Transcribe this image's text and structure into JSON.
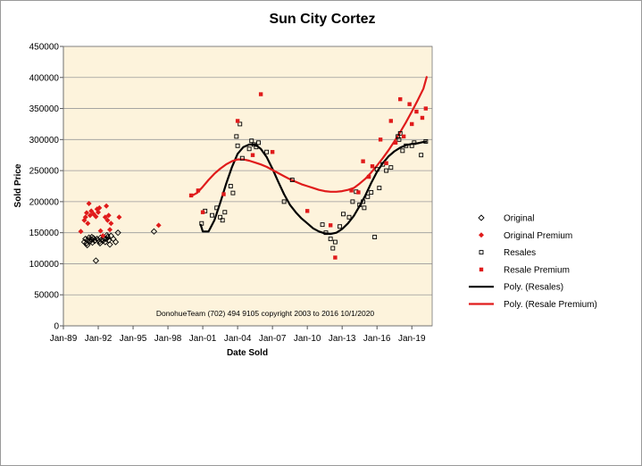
{
  "chart_data": {
    "type": "scatter",
    "title": "Sun City Cortez",
    "xlabel": "Date Sold",
    "ylabel": "Sold Price",
    "xlim": [
      1989.0,
      2020.75
    ],
    "ylim": [
      0,
      450000
    ],
    "y_ticks": [
      "0",
      "50000",
      "100000",
      "150000",
      "200000",
      "250000",
      "300000",
      "350000",
      "400000",
      "450000"
    ],
    "y_tick_values": [
      0,
      50000,
      100000,
      150000,
      200000,
      250000,
      300000,
      350000,
      400000,
      450000
    ],
    "x_ticks": [
      "Jan-89",
      "Jan-92",
      "Jan-95",
      "Jan-98",
      "Jan-01",
      "Jan-04",
      "Jan-07",
      "Jan-10",
      "Jan-13",
      "Jan-16",
      "Jan-19"
    ],
    "x_tick_values": [
      1989,
      1992,
      1995,
      1998,
      2001,
      2004,
      2007,
      2010,
      2013,
      2016,
      2019
    ],
    "annotation": "DonohueTeam   (702) 494 9105 copyright  2003 to 2016  10/1/2020",
    "colors": {
      "plot_bg": "#fdf3dc",
      "black": "#000000",
      "red": "#e01b1b",
      "grid": "#9a9a9a"
    },
    "series": [
      {
        "name": "Original",
        "marker": "diamond-open",
        "color": "#000000",
        "points": [
          [
            1990.8,
            135000
          ],
          [
            1990.9,
            140000
          ],
          [
            1991.0,
            133000
          ],
          [
            1991.1,
            138000
          ],
          [
            1991.2,
            142000
          ],
          [
            1991.3,
            136000
          ],
          [
            1991.4,
            139000
          ],
          [
            1991.5,
            134000
          ],
          [
            1991.6,
            141000
          ],
          [
            1991.7,
            137000
          ],
          [
            1991.8,
            105000
          ],
          [
            1991.9,
            140000
          ],
          [
            1992.0,
            138000
          ],
          [
            1992.1,
            136000
          ],
          [
            1992.2,
            142000
          ],
          [
            1992.3,
            139000
          ],
          [
            1992.4,
            137000
          ],
          [
            1992.5,
            141000
          ],
          [
            1992.6,
            135000
          ],
          [
            1992.7,
            140000
          ],
          [
            1992.8,
            143000
          ],
          [
            1992.9,
            138000
          ],
          [
            1993.0,
            131000
          ],
          [
            1993.1,
            145000
          ],
          [
            1993.3,
            140000
          ],
          [
            1993.5,
            135000
          ],
          [
            1993.7,
            150000
          ],
          [
            1991.05,
            130000
          ],
          [
            1991.45,
            143000
          ],
          [
            1992.15,
            133000
          ],
          [
            1992.75,
            146000
          ],
          [
            1996.8,
            152000
          ]
        ]
      },
      {
        "name": "Original Premium",
        "marker": "diamond-filled",
        "color": "#e01b1b",
        "points": [
          [
            1990.5,
            152000
          ],
          [
            1990.8,
            170000
          ],
          [
            1990.9,
            175000
          ],
          [
            1991.0,
            182000
          ],
          [
            1991.1,
            165000
          ],
          [
            1991.2,
            197000
          ],
          [
            1991.3,
            178000
          ],
          [
            1991.4,
            185000
          ],
          [
            1991.6,
            180000
          ],
          [
            1991.8,
            176000
          ],
          [
            1991.9,
            188000
          ],
          [
            1992.0,
            183000
          ],
          [
            1992.1,
            190000
          ],
          [
            1992.2,
            153000
          ],
          [
            1992.4,
            145000
          ],
          [
            1992.6,
            175000
          ],
          [
            1992.7,
            193000
          ],
          [
            1992.8,
            170000
          ],
          [
            1992.9,
            178000
          ],
          [
            1993.0,
            155000
          ],
          [
            1993.1,
            165000
          ],
          [
            1993.8,
            175000
          ],
          [
            1997.2,
            162000
          ]
        ]
      },
      {
        "name": "Resales",
        "marker": "square-open",
        "color": "#000000",
        "points": [
          [
            2000.9,
            165000
          ],
          [
            2001.2,
            185000
          ],
          [
            2001.8,
            178000
          ],
          [
            2002.2,
            190000
          ],
          [
            2002.5,
            175000
          ],
          [
            2002.7,
            170000
          ],
          [
            2002.9,
            183000
          ],
          [
            2003.4,
            225000
          ],
          [
            2003.6,
            214000
          ],
          [
            2003.9,
            305000
          ],
          [
            2004.0,
            290000
          ],
          [
            2004.2,
            325000
          ],
          [
            2004.4,
            270000
          ],
          [
            2005.0,
            285000
          ],
          [
            2005.2,
            298000
          ],
          [
            2005.4,
            292000
          ],
          [
            2005.6,
            288000
          ],
          [
            2005.8,
            295000
          ],
          [
            2006.5,
            280000
          ],
          [
            2008.0,
            200000
          ],
          [
            2008.7,
            235000
          ],
          [
            2011.3,
            163000
          ],
          [
            2011.6,
            150000
          ],
          [
            2012.0,
            140000
          ],
          [
            2012.2,
            125000
          ],
          [
            2012.4,
            135000
          ],
          [
            2012.8,
            160000
          ],
          [
            2013.1,
            180000
          ],
          [
            2013.6,
            175000
          ],
          [
            2013.9,
            200000
          ],
          [
            2014.2,
            216000
          ],
          [
            2014.5,
            195000
          ],
          [
            2014.8,
            200000
          ],
          [
            2014.9,
            190000
          ],
          [
            2015.2,
            208000
          ],
          [
            2015.5,
            215000
          ],
          [
            2015.8,
            143000
          ],
          [
            2016.0,
            252000
          ],
          [
            2016.2,
            222000
          ],
          [
            2016.5,
            260000
          ],
          [
            2016.8,
            250000
          ],
          [
            2017.2,
            255000
          ],
          [
            2017.8,
            305000
          ],
          [
            2017.9,
            300000
          ],
          [
            2018.0,
            310000
          ],
          [
            2018.2,
            282000
          ],
          [
            2018.5,
            290000
          ],
          [
            2019.0,
            290000
          ],
          [
            2019.2,
            295000
          ],
          [
            2019.8,
            275000
          ],
          [
            2020.2,
            297000
          ]
        ]
      },
      {
        "name": "Resale Premium",
        "marker": "square-filled",
        "color": "#e01b1b",
        "points": [
          [
            2000.0,
            210000
          ],
          [
            2000.6,
            218000
          ],
          [
            2001.0,
            183000
          ],
          [
            2002.8,
            212000
          ],
          [
            2004.0,
            330000
          ],
          [
            2005.3,
            275000
          ],
          [
            2006.0,
            373000
          ],
          [
            2007.0,
            280000
          ],
          [
            2010.0,
            185000
          ],
          [
            2012.0,
            162000
          ],
          [
            2012.4,
            110000
          ],
          [
            2013.8,
            218000
          ],
          [
            2014.4,
            215000
          ],
          [
            2014.8,
            265000
          ],
          [
            2015.3,
            240000
          ],
          [
            2015.6,
            257000
          ],
          [
            2016.3,
            300000
          ],
          [
            2016.8,
            262000
          ],
          [
            2017.2,
            330000
          ],
          [
            2017.6,
            295000
          ],
          [
            2018.0,
            365000
          ],
          [
            2018.3,
            305000
          ],
          [
            2018.8,
            357000
          ],
          [
            2019.0,
            325000
          ],
          [
            2019.4,
            345000
          ],
          [
            2019.9,
            335000
          ],
          [
            2020.2,
            350000
          ]
        ]
      }
    ],
    "trendlines": [
      {
        "name": "Poly. (Resales)",
        "color": "#000000",
        "points": [
          [
            2000.8,
            164000
          ],
          [
            2001.0,
            152000
          ],
          [
            2001.5,
            152000
          ],
          [
            2002.0,
            170000
          ],
          [
            2002.5,
            198000
          ],
          [
            2003.0,
            228000
          ],
          [
            2003.5,
            255000
          ],
          [
            2004.0,
            277000
          ],
          [
            2004.5,
            288000
          ],
          [
            2005.0,
            292000
          ],
          [
            2005.5,
            292000
          ],
          [
            2006.0,
            285000
          ],
          [
            2006.5,
            272000
          ],
          [
            2007.0,
            253000
          ],
          [
            2007.5,
            232000
          ],
          [
            2008.0,
            212000
          ],
          [
            2008.5,
            195000
          ],
          [
            2009.0,
            183000
          ],
          [
            2009.5,
            173000
          ],
          [
            2010.0,
            165000
          ],
          [
            2010.5,
            157000
          ],
          [
            2011.0,
            152000
          ],
          [
            2011.5,
            149000
          ],
          [
            2012.0,
            148000
          ],
          [
            2012.5,
            150000
          ],
          [
            2013.0,
            156000
          ],
          [
            2013.5,
            165000
          ],
          [
            2014.0,
            177000
          ],
          [
            2014.5,
            193000
          ],
          [
            2015.0,
            210000
          ],
          [
            2015.5,
            230000
          ],
          [
            2016.0,
            248000
          ],
          [
            2016.5,
            262000
          ],
          [
            2017.0,
            273000
          ],
          [
            2017.5,
            281000
          ],
          [
            2018.0,
            287000
          ],
          [
            2018.5,
            291000
          ],
          [
            2019.0,
            293000
          ],
          [
            2019.5,
            294000
          ],
          [
            2020.0,
            296000
          ],
          [
            2020.3,
            297000
          ]
        ]
      },
      {
        "name": "Poly. (Resale Premium)",
        "color": "#e01b1b",
        "points": [
          [
            2000.0,
            209000
          ],
          [
            2000.5,
            214000
          ],
          [
            2001.0,
            224000
          ],
          [
            2001.5,
            235000
          ],
          [
            2002.0,
            245000
          ],
          [
            2002.5,
            253000
          ],
          [
            2003.0,
            260000
          ],
          [
            2003.5,
            265000
          ],
          [
            2004.0,
            268000
          ],
          [
            2004.5,
            268000
          ],
          [
            2005.0,
            266000
          ],
          [
            2005.5,
            263000
          ],
          [
            2006.0,
            260000
          ],
          [
            2006.5,
            256000
          ],
          [
            2007.0,
            251000
          ],
          [
            2007.5,
            246000
          ],
          [
            2008.0,
            241000
          ],
          [
            2008.5,
            236000
          ],
          [
            2009.0,
            232000
          ],
          [
            2009.5,
            228000
          ],
          [
            2010.0,
            225000
          ],
          [
            2010.5,
            222000
          ],
          [
            2011.0,
            219000
          ],
          [
            2011.5,
            217000
          ],
          [
            2012.0,
            216000
          ],
          [
            2012.5,
            216000
          ],
          [
            2013.0,
            217000
          ],
          [
            2013.5,
            219000
          ],
          [
            2014.0,
            222000
          ],
          [
            2014.5,
            229000
          ],
          [
            2015.0,
            237000
          ],
          [
            2015.5,
            247000
          ],
          [
            2016.0,
            258000
          ],
          [
            2016.5,
            270000
          ],
          [
            2017.0,
            283000
          ],
          [
            2017.5,
            297000
          ],
          [
            2018.0,
            312000
          ],
          [
            2018.5,
            328000
          ],
          [
            2019.0,
            345000
          ],
          [
            2019.5,
            363000
          ],
          [
            2020.0,
            382000
          ],
          [
            2020.3,
            402000
          ]
        ]
      }
    ],
    "legend": [
      {
        "label": "Original",
        "marker": "diamond-open",
        "color": "#000000"
      },
      {
        "label": "Original Premium",
        "marker": "diamond-filled",
        "color": "#e01b1b"
      },
      {
        "label": "Resales",
        "marker": "square-open",
        "color": "#000000"
      },
      {
        "label": "Resale Premium",
        "marker": "square-filled",
        "color": "#e01b1b"
      },
      {
        "label": "Poly. (Resales)",
        "marker": "line",
        "color": "#000000"
      },
      {
        "label": "Poly. (Resale Premium)",
        "marker": "line",
        "color": "#e01b1b"
      }
    ]
  }
}
